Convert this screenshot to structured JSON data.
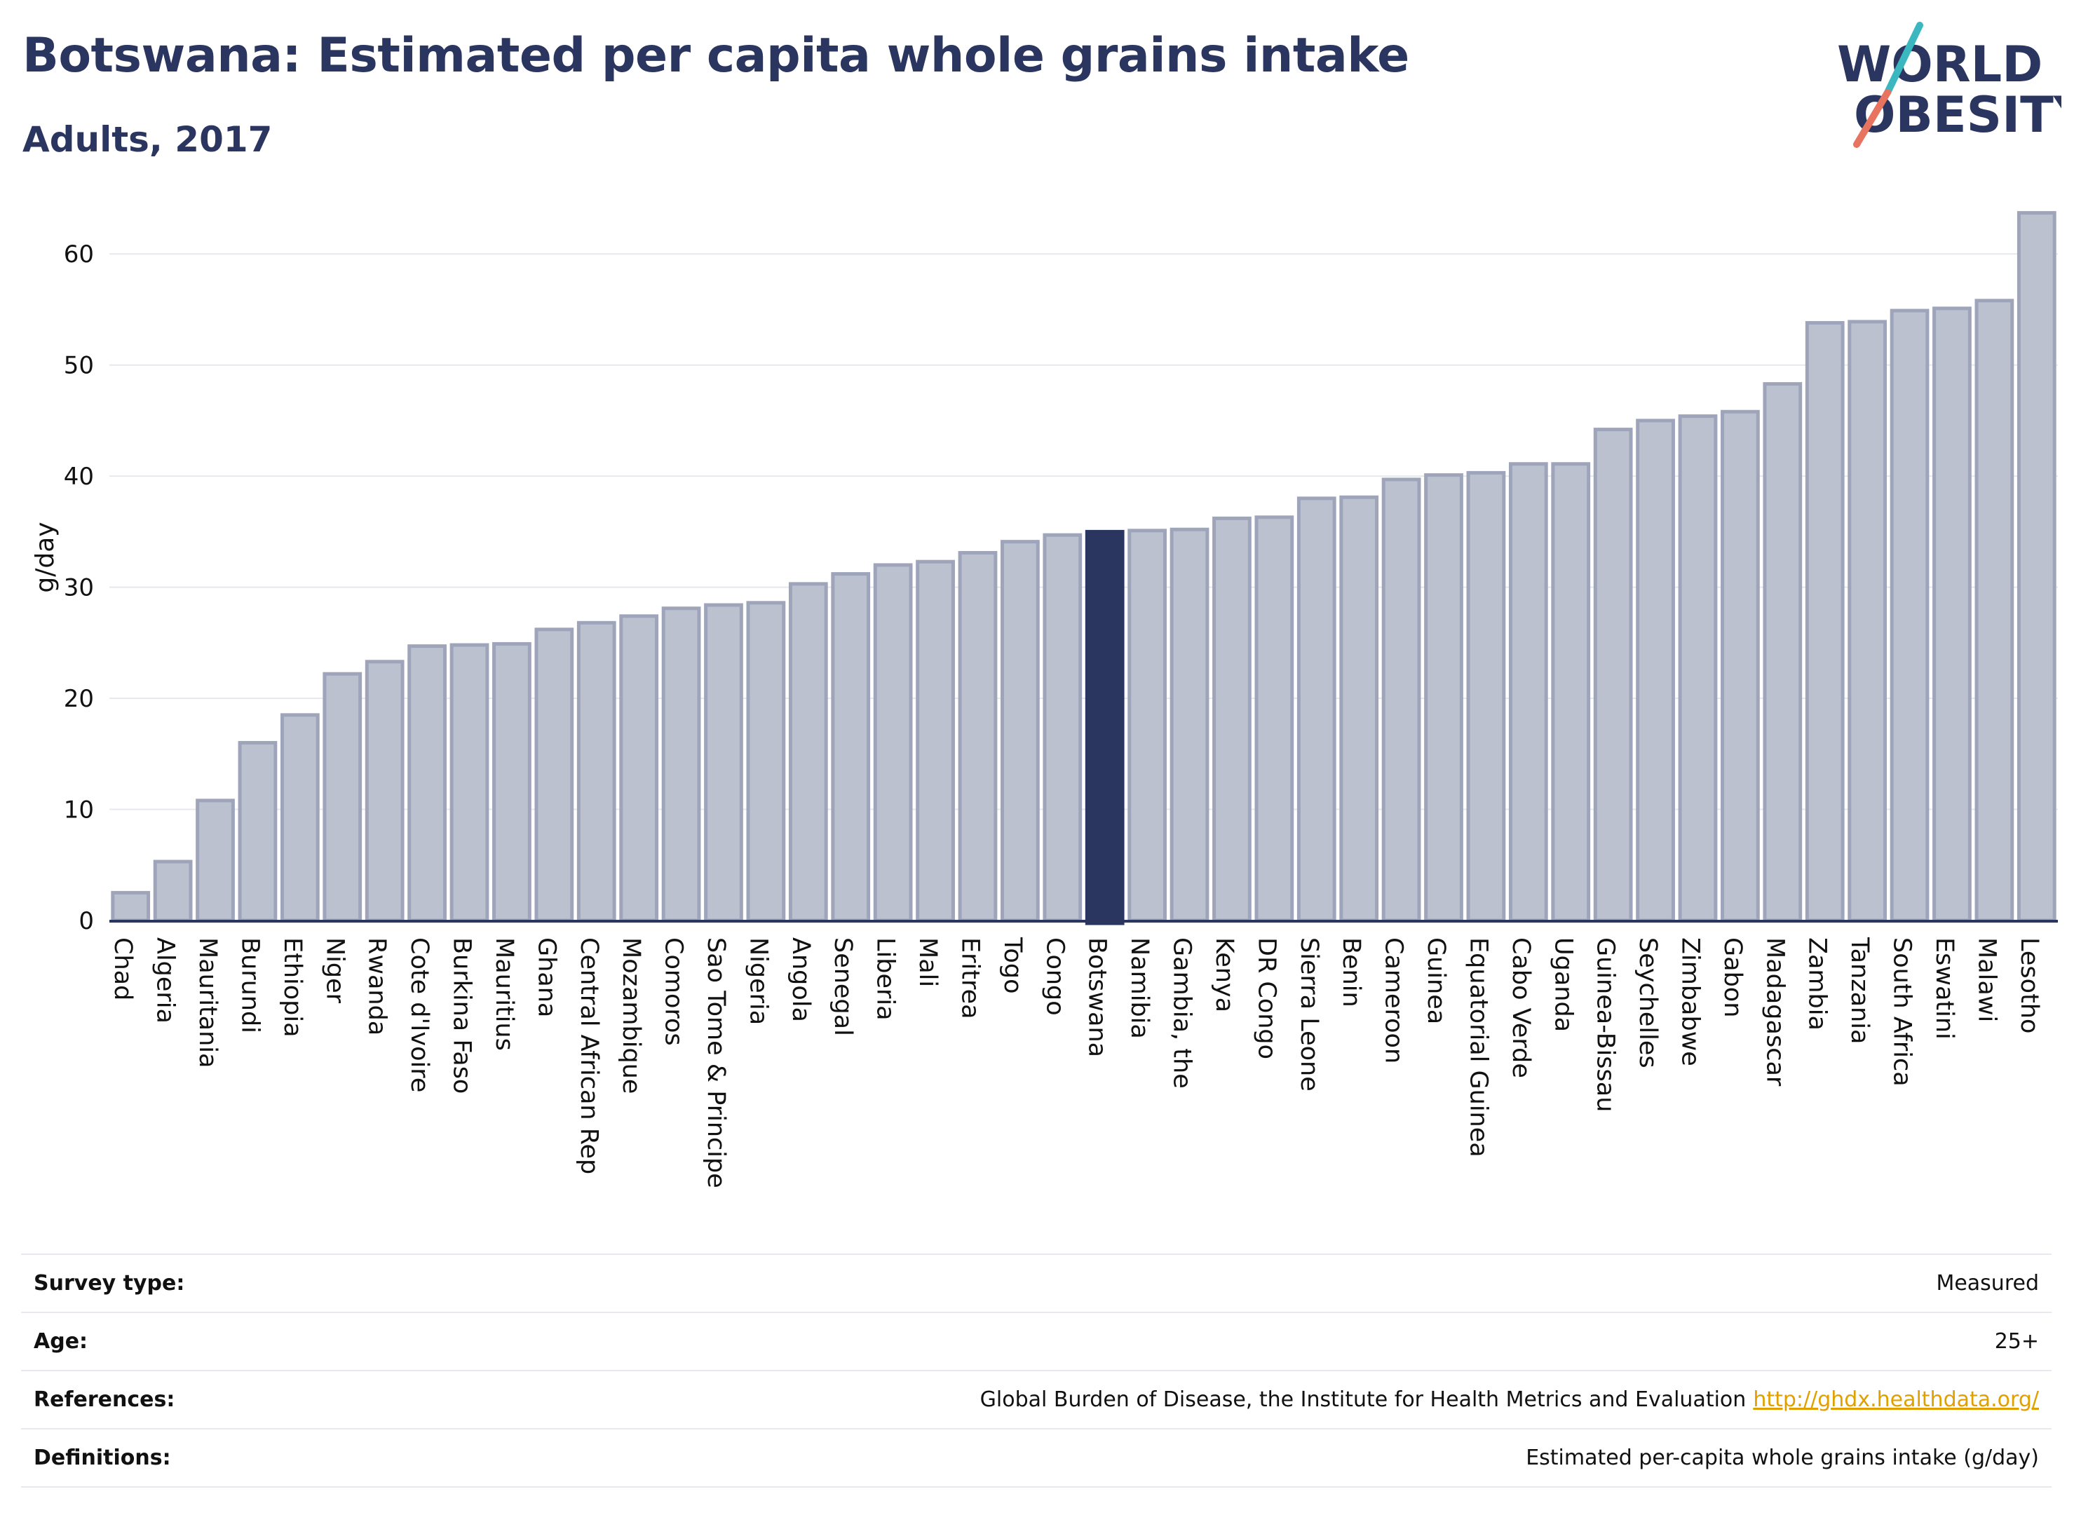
{
  "header": {
    "title": "Botswana: Estimated per capita whole grains intake",
    "subtitle": "Adults, 2017"
  },
  "logo": {
    "line1": "WORLD",
    "line2": "OBESITY",
    "colors": {
      "text": "#2a3560",
      "slash_top": "#3ab7bf",
      "slash_bottom": "#e8735f"
    }
  },
  "colors": {
    "bar": "#bcc1cf",
    "bar_border": "#9ea5bb",
    "highlight": "#2a3560",
    "grid": "#e6e8ee",
    "axis": "#2a3560"
  },
  "chart_data": {
    "type": "bar",
    "ylabel": "g/day",
    "xlabel": "",
    "ylim": [
      0,
      65
    ],
    "yticks": [
      0,
      10,
      20,
      30,
      40,
      50,
      60
    ],
    "grid": true,
    "highlight": "Botswana",
    "categories": [
      "Chad",
      "Algeria",
      "Mauritania",
      "Burundi",
      "Ethiopia",
      "Niger",
      "Rwanda",
      "Cote d'Ivoire",
      "Burkina Faso",
      "Mauritius",
      "Ghana",
      "Central African Rep",
      "Mozambique",
      "Comoros",
      "Sao Tome & Principe",
      "Nigeria",
      "Angola",
      "Senegal",
      "Liberia",
      "Mali",
      "Eritrea",
      "Togo",
      "Congo",
      "Botswana",
      "Namibia",
      "Gambia, the",
      "Kenya",
      "DR Congo",
      "Sierra Leone",
      "Benin",
      "Cameroon",
      "Guinea",
      "Equatorial Guinea",
      "Cabo Verde",
      "Uganda",
      "Guinea-Bissau",
      "Seychelles",
      "Zimbabwe",
      "Gabon",
      "Madagascar",
      "Zambia",
      "Tanzania",
      "South Africa",
      "Eswatini",
      "Malawi",
      "Lesotho"
    ],
    "values": [
      2.5,
      5.3,
      10.8,
      16.0,
      18.5,
      22.2,
      23.3,
      24.7,
      24.8,
      24.9,
      26.2,
      26.8,
      27.4,
      28.1,
      28.4,
      28.6,
      30.3,
      31.2,
      32.0,
      32.3,
      33.1,
      34.1,
      34.7,
      35.0,
      35.1,
      35.2,
      36.2,
      36.3,
      38.0,
      38.1,
      39.7,
      40.1,
      40.3,
      41.1,
      41.1,
      44.2,
      45.0,
      45.4,
      45.8,
      48.3,
      53.8,
      53.9,
      54.9,
      55.1,
      55.8,
      63.7
    ]
  },
  "info": [
    {
      "key": "Survey type:",
      "value": "Measured"
    },
    {
      "key": "Age:",
      "value": "25+"
    },
    {
      "key": "References:",
      "value": "Global Burden of Disease, the Institute for Health Metrics and Evaluation",
      "link": "http://ghdx.healthdata.org/"
    },
    {
      "key": "Definitions:",
      "value": "Estimated per-capita whole grains intake (g/day)"
    }
  ]
}
